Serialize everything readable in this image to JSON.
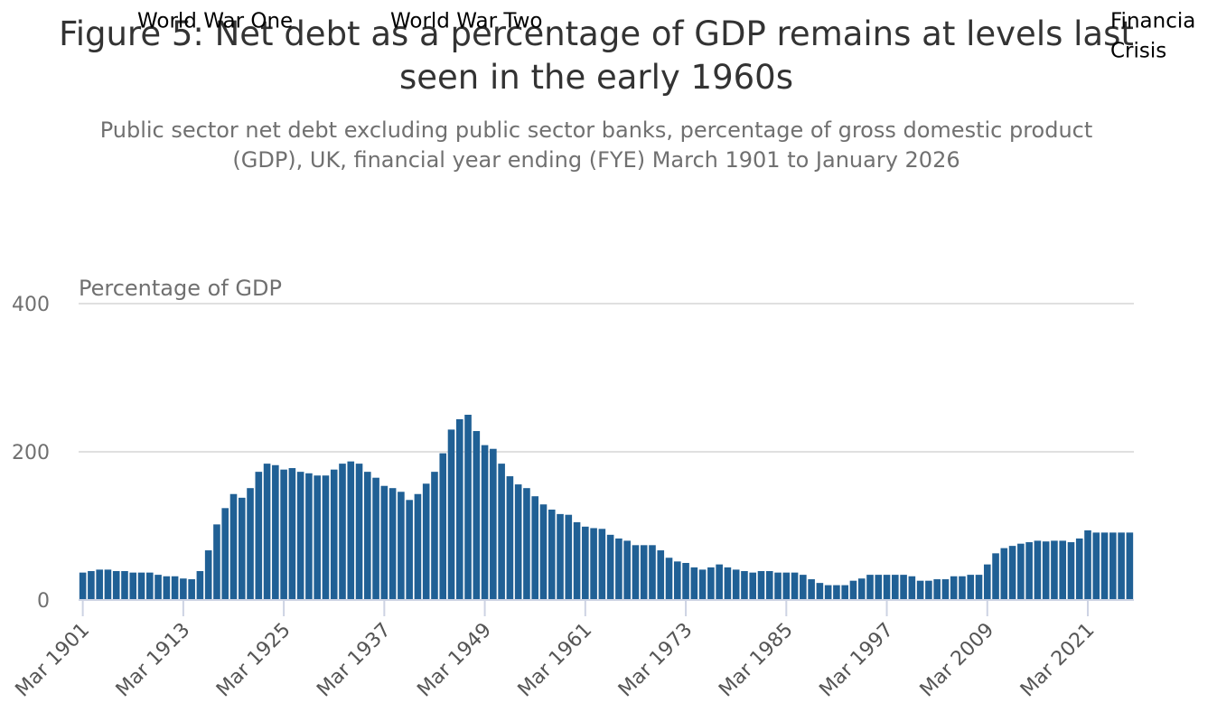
{
  "chart_data": {
    "type": "bar",
    "title": "Figure 5: Net debt as a percentage of GDP remains at levels last seen in the early 1960s",
    "subtitle": "Public sector net debt excluding public sector banks, percentage of gross domestic product (GDP), UK, financial year ending (FYE) March 1901 to January 2026",
    "y_label": "Percentage of GDP",
    "annotations": [
      "World War One",
      "World War Two",
      "Financia",
      "Crisis"
    ],
    "categories": [
      "Mar 1901",
      null,
      null,
      null,
      null,
      null,
      null,
      null,
      null,
      null,
      null,
      null,
      "Mar 1913",
      null,
      null,
      null,
      null,
      null,
      null,
      null,
      null,
      null,
      null,
      null,
      "Mar 1925",
      null,
      null,
      null,
      null,
      null,
      null,
      null,
      null,
      null,
      null,
      null,
      "Mar 1937",
      null,
      null,
      null,
      null,
      null,
      null,
      null,
      null,
      null,
      null,
      null,
      "Mar 1949",
      null,
      null,
      null,
      null,
      null,
      null,
      null,
      null,
      null,
      null,
      null,
      "Mar 1961",
      null,
      null,
      null,
      null,
      null,
      null,
      null,
      null,
      null,
      null,
      null,
      "Mar 1973",
      null,
      null,
      null,
      null,
      null,
      null,
      null,
      null,
      null,
      null,
      null,
      "Mar 1985",
      null,
      null,
      null,
      null,
      null,
      null,
      null,
      null,
      null,
      null,
      null,
      "Mar 1997",
      null,
      null,
      null,
      null,
      null,
      null,
      null,
      null,
      null,
      null,
      null,
      "Mar 2009",
      null,
      null,
      null,
      null,
      null,
      null,
      null,
      null,
      null,
      null,
      null,
      "Mar 2021",
      null,
      null,
      null,
      null,
      null
    ],
    "values": [
      37,
      39,
      41,
      41,
      39,
      39,
      37,
      37,
      37,
      34,
      32,
      32,
      29,
      28,
      39,
      67,
      102,
      124,
      143,
      138,
      151,
      173,
      184,
      182,
      176,
      178,
      173,
      171,
      168,
      168,
      176,
      184,
      187,
      184,
      173,
      165,
      154,
      151,
      146,
      135,
      143,
      157,
      173,
      198,
      230,
      244,
      250,
      228,
      209,
      204,
      184,
      167,
      156,
      151,
      140,
      129,
      122,
      116,
      115,
      105,
      99,
      97,
      96,
      88,
      83,
      80,
      74,
      74,
      74,
      67,
      57,
      52,
      50,
      44,
      41,
      44,
      48,
      44,
      41,
      39,
      37,
      39,
      39,
      37,
      37,
      37,
      34,
      28,
      23,
      20,
      20,
      20,
      26,
      29,
      34,
      34,
      34,
      34,
      34,
      32,
      26,
      26,
      28,
      28,
      32,
      32,
      34,
      34,
      48,
      63,
      70,
      73,
      76,
      78,
      80,
      79,
      80,
      80,
      78,
      83,
      94,
      91,
      91,
      91,
      91,
      91
    ],
    "color": "#206095",
    "ylim": [
      0,
      400
    ],
    "yticks": [
      0,
      200,
      400
    ],
    "grid": true
  }
}
